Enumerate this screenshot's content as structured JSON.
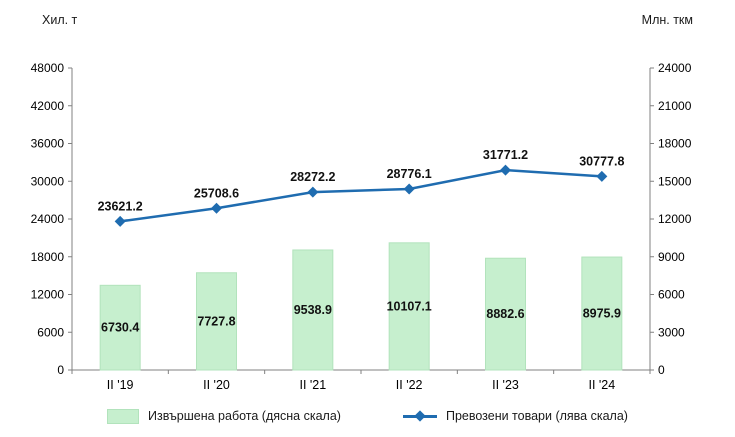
{
  "chart_data": {
    "type": "combo",
    "categories": [
      "II '19",
      "II '20",
      "II '21",
      "II '22",
      "II '23",
      "II '24"
    ],
    "series": [
      {
        "name": "Извършена работа (дясна скала)",
        "type": "bar",
        "axis": "right",
        "color": "#c6efce",
        "border": "#b2e3bc",
        "values": [
          6730.4,
          7727.8,
          9538.9,
          10107.1,
          8882.6,
          8975.9
        ]
      },
      {
        "name": "Превозени товари (лява скала)",
        "type": "line",
        "axis": "left",
        "color": "#1f6cb0",
        "values": [
          23621.2,
          25708.6,
          28272.2,
          28776.1,
          31771.2,
          30777.8
        ]
      }
    ],
    "left_axis": {
      "title": "Хил. т",
      "min": 0,
      "max": 48000,
      "step": 6000
    },
    "right_axis": {
      "title": "Млн. ткм",
      "min": 0,
      "max": 24000,
      "step": 3000
    },
    "axis_color": "#808080",
    "grid": false,
    "legend_position": "bottom"
  }
}
